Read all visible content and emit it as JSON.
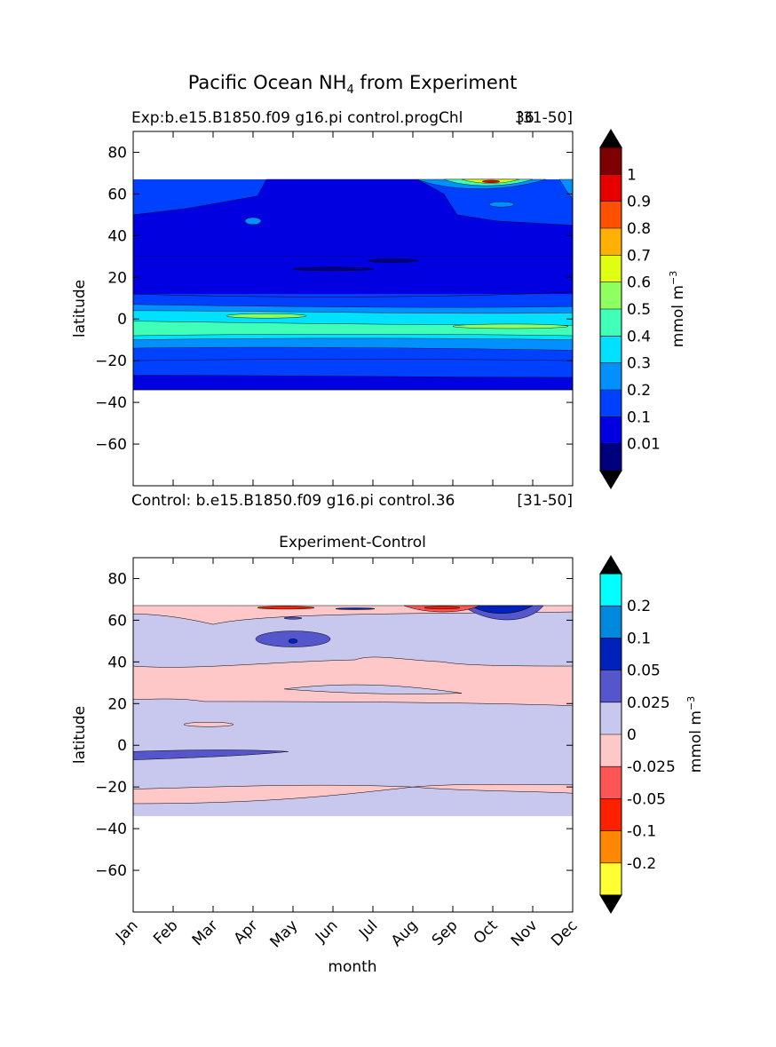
{
  "figure": {
    "title_main": "Pacific Ocean NH",
    "title_sub": "4",
    "title_rest": " from Experiment",
    "top_header_left": "Exp:b.e15.B1850.f09 g16.pi control.progChl",
    "top_header_mid": "36",
    "top_header_right": "[31-50]",
    "bottom_header_left": "Control: b.e15.B1850.f09 g16.pi control.36",
    "bottom_header_right": "[31-50]",
    "bottom_panel_title": "Experiment-Control"
  },
  "chart_data": [
    {
      "type": "heatmap",
      "title": "Exp:b.e15.B1850.f09 g16.pi control.progChl36 [31-50]",
      "xlabel": "",
      "ylabel": "latitude",
      "ylim": [
        -80,
        90
      ],
      "xlim": [
        "Jan",
        "Dec"
      ],
      "y_ticks": [
        "80",
        "60",
        "40",
        "20",
        "0",
        "−20",
        "−40",
        "−60"
      ],
      "y_tick_values": [
        80,
        60,
        40,
        20,
        0,
        -20,
        -40,
        -60
      ],
      "data_lat_range": [
        -34,
        67
      ],
      "colorbar": {
        "label": "mmol m",
        "label_exp": "−3",
        "levels": [
          "0.01",
          "0.1",
          "0.2",
          "0.3",
          "0.4",
          "0.5",
          "0.6",
          "0.7",
          "0.8",
          "0.9",
          "1"
        ],
        "colors": [
          "#00007f",
          "#0000e0",
          "#0040ff",
          "#0090ff",
          "#00e0ff",
          "#40ffb8",
          "#90ff60",
          "#e0ff10",
          "#ffb000",
          "#ff5000",
          "#e80000",
          "#7f0000"
        ],
        "extend": "both",
        "extend_low_color": "#000000",
        "extend_high_color": "#000000"
      },
      "latitude_bands": [
        {
          "lat": [
            50,
            67
          ],
          "value": "0.1-0.2"
        },
        {
          "lat": [
            30,
            50
          ],
          "value": "0.1-0.2"
        },
        {
          "lat": [
            10,
            30
          ],
          "value": "0.01-0.1"
        },
        {
          "lat": [
            3,
            10
          ],
          "value": "0.2-0.3"
        },
        {
          "lat": [
            -3,
            3
          ],
          "value": "0.3-0.4"
        },
        {
          "lat": [
            -10,
            -3
          ],
          "value": "0.4-0.5"
        },
        {
          "lat": [
            -20,
            -10
          ],
          "value": "0.2-0.3"
        },
        {
          "lat": [
            -34,
            -20
          ],
          "value": "0.1-0.2"
        }
      ]
    },
    {
      "type": "heatmap",
      "title": "Experiment-Control",
      "xlabel": "month",
      "ylabel": "latitude",
      "ylim": [
        -80,
        90
      ],
      "x_ticks": [
        "Jan",
        "Feb",
        "Mar",
        "Apr",
        "May",
        "Jun",
        "Jul",
        "Aug",
        "Sep",
        "Oct",
        "Nov",
        "Dec"
      ],
      "y_ticks": [
        "80",
        "60",
        "40",
        "20",
        "0",
        "−20",
        "−40",
        "−60"
      ],
      "y_tick_values": [
        80,
        60,
        40,
        20,
        0,
        -20,
        -40,
        -60
      ],
      "data_lat_range": [
        -34,
        67
      ],
      "colorbar": {
        "label": "mmol m",
        "label_exp": "−3",
        "levels": [
          "0.2",
          "0.1",
          "0.05",
          "0.025",
          "0",
          "-0.025",
          "-0.05",
          "-0.1",
          "-0.2"
        ],
        "colors": [
          "#ffff33",
          "#ff8800",
          "#ff2000",
          "#ff5555",
          "#ffc8c8",
          "#c8c8ee",
          "#5555cc",
          "#0022bb",
          "#0088dd",
          "#00ffff"
        ],
        "extend": "both",
        "extend_low_color": "#000000",
        "extend_high_color": "#000000"
      },
      "latitude_bands": [
        {
          "lat": [
            62,
            67
          ],
          "value": "0-0.025"
        },
        {
          "lat": [
            38,
            62
          ],
          "value": "-0.025-0"
        },
        {
          "lat": [
            19,
            38
          ],
          "value": "0-0.025"
        },
        {
          "lat": [
            -20,
            19
          ],
          "value": "-0.025-0"
        },
        {
          "lat": [
            -28,
            -20
          ],
          "value": "0-0.025"
        },
        {
          "lat": [
            -34,
            -28
          ],
          "value": "-0.025-0"
        }
      ]
    }
  ]
}
